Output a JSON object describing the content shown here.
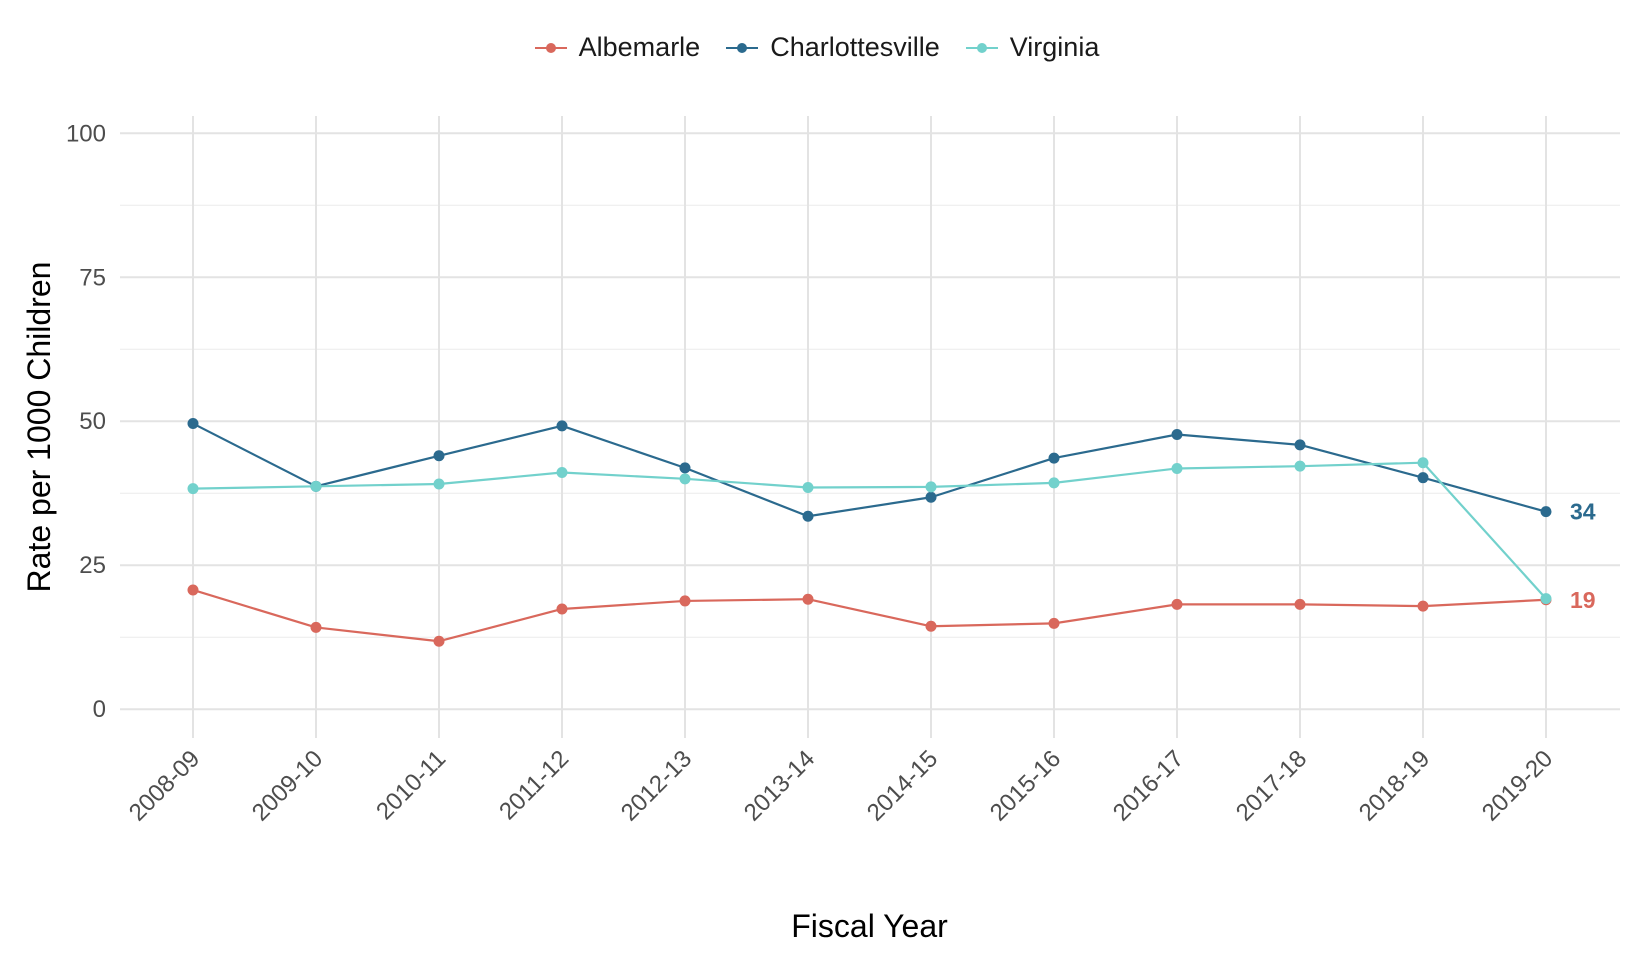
{
  "chart_data": {
    "type": "line",
    "title": "",
    "xlabel": "Fiscal Year",
    "ylabel": "Rate per 1000 Children",
    "ylim": [
      -5,
      103
    ],
    "yticks": [
      0,
      25,
      50,
      75,
      100
    ],
    "grid": true,
    "legend_position": "top",
    "categories": [
      "2008-09",
      "2009-10",
      "2010-11",
      "2011-12",
      "2012-13",
      "2013-14",
      "2014-15",
      "2015-16",
      "2016-17",
      "2017-18",
      "2018-19",
      "2019-20"
    ],
    "series": [
      {
        "name": "Albemarle",
        "color": "#d9685c",
        "values": [
          20.7,
          14.2,
          11.8,
          17.4,
          18.8,
          19.1,
          14.4,
          14.9,
          18.2,
          18.2,
          17.9,
          19.0
        ]
      },
      {
        "name": "Charlottesville",
        "color": "#2b6a8e",
        "values": [
          49.6,
          38.7,
          44.0,
          49.2,
          41.9,
          33.5,
          36.8,
          43.6,
          47.7,
          45.9,
          40.2,
          34.3
        ]
      },
      {
        "name": "Virginia",
        "color": "#72d1cc",
        "values": [
          38.3,
          38.7,
          39.1,
          41.1,
          40.0,
          38.5,
          38.6,
          39.3,
          41.8,
          42.2,
          42.8,
          19.2
        ]
      }
    ],
    "end_labels": [
      {
        "series": "Charlottesville",
        "text": "34",
        "color": "#2b6a8e"
      },
      {
        "series": "Albemarle",
        "text": "19",
        "color": "#d9685c"
      }
    ]
  }
}
